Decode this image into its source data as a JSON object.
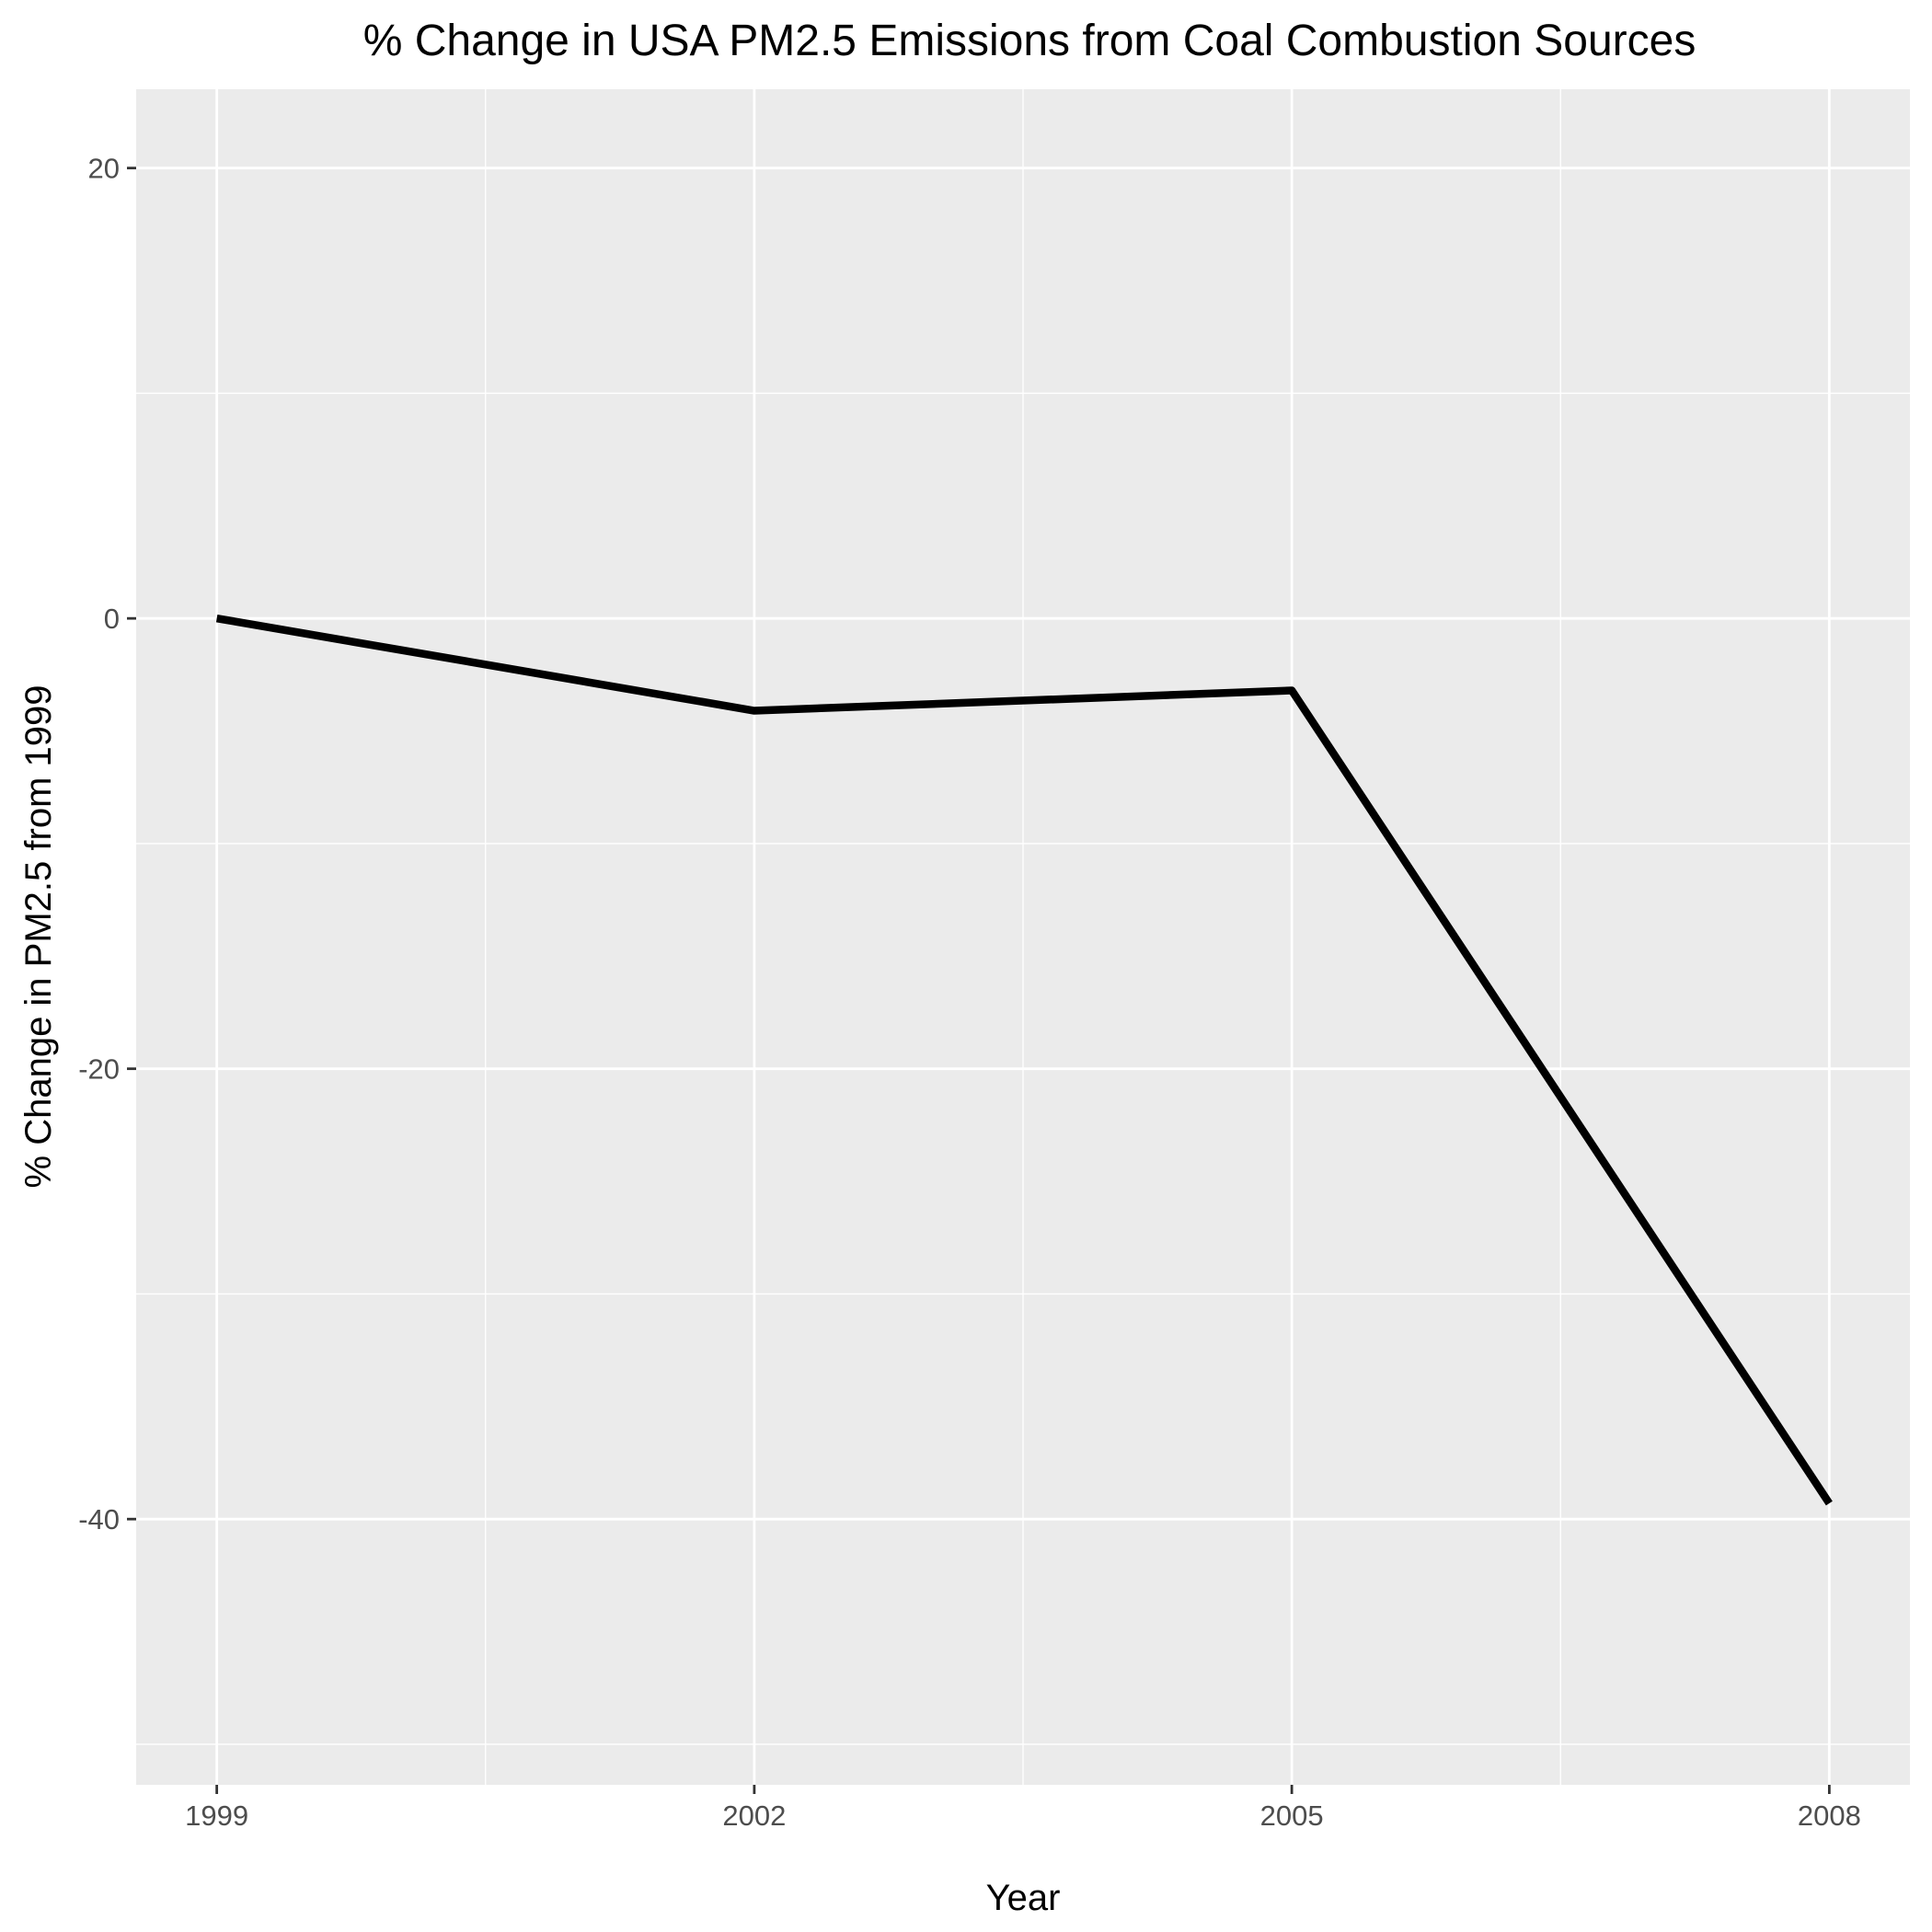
{
  "chart_data": {
    "type": "line",
    "title": "% Change in USA PM2.5 Emissions from Coal Combustion Sources",
    "xlabel": "Year",
    "ylabel": "% Change in PM2.5 from 1999",
    "x": [
      1999,
      2002,
      2005,
      2008
    ],
    "series": [
      {
        "values": [
          0,
          -4.1,
          -3.2,
          -39.3
        ]
      }
    ],
    "xticks": [
      1999,
      2002,
      2005,
      2008
    ],
    "xtick_labels": [
      "1999",
      "2002",
      "2005",
      "2008"
    ],
    "yticks": [
      20,
      0,
      -20,
      -40
    ],
    "ytick_labels": [
      "20",
      "0",
      "-20",
      "-40"
    ],
    "xlim": [
      1998.55,
      2008.45
    ],
    "ylim": [
      -51.8,
      23.5
    ],
    "grid": true,
    "colors": {
      "panel": "#ebebeb",
      "grid": "#ffffff",
      "line": "#000000",
      "tick": "#4d4d4d"
    }
  }
}
